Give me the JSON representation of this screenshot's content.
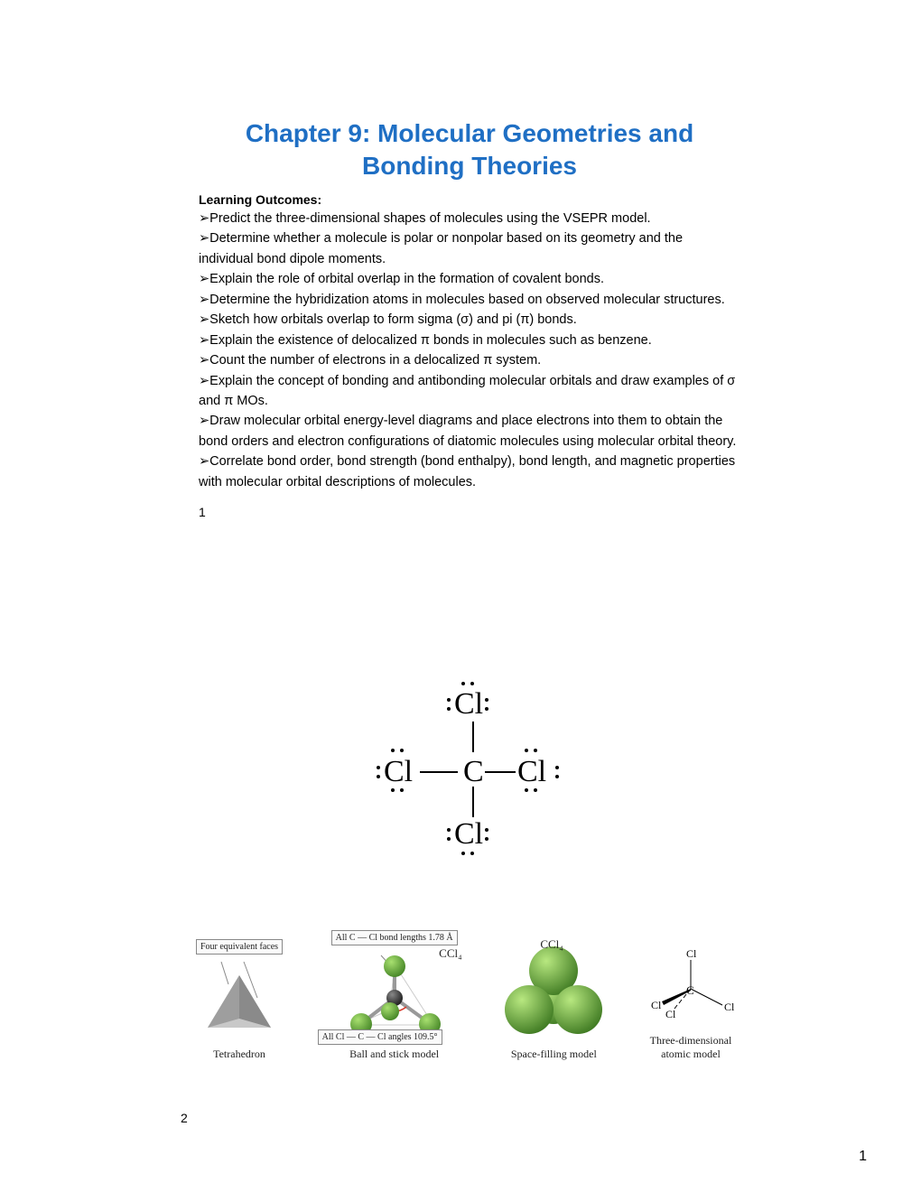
{
  "title": "Chapter 9: Molecular Geometries and Bonding Theories",
  "subhead": "Learning Outcomes:",
  "bullet_glyph": "➢",
  "outcomes": [
    "Predict the three-dimensional shapes of molecules using the VSEPR model.",
    "Determine whether a molecule is polar or nonpolar based on its geometry and the individual bond dipole moments.",
    "Explain the role of orbital overlap in the formation of covalent bonds.",
    "Determine the hybridization atoms in molecules based on observed molecular structures.",
    "Sketch how orbitals overlap to form sigma (σ) and pi (π) bonds.",
    "Explain the existence of delocalized π bonds in molecules such as benzene.",
    "Count the number of electrons in a delocalized π system.",
    "Explain the concept of bonding and antibonding molecular orbitals and draw examples of σ and π MOs.",
    "Draw molecular orbital energy-level diagrams and place electrons into them to obtain the bond orders and electron configurations of diatomic molecules using molecular orbital theory.",
    "Correlate bond order, bond strength (bond enthalpy), bond length, and magnetic properties with molecular orbital descriptions of molecules."
  ],
  "slide1_num": "1",
  "slide2_num": "2",
  "page_num": "1",
  "lewis": {
    "center": "C",
    "ligand": "Cl"
  },
  "callouts": {
    "faces": "Four equivalent faces",
    "bondlen": "All C — Cl bond lengths 1.78 Å",
    "angle": "All Cl — C — Cl angles 109.5°"
  },
  "formulas": {
    "ccl4": "CCl₄"
  },
  "models": {
    "tetra": "Tetrahedron",
    "ballstick": "Ball and stick model",
    "spacefill": "Space-filling model",
    "atomic3d_l1": "Three-dimensional",
    "atomic3d_l2": "atomic model"
  },
  "atomic3d": {
    "C": "C",
    "Cl": "Cl"
  },
  "colors": {
    "title": "#1f6fc4",
    "chlorine": "#6eb33f",
    "chlorine_dark": "#4a8a2a",
    "carbon": "#3a3a3a",
    "tetra_face": "#b8b8b8",
    "tetra_face_dark": "#8a8a8a",
    "callout_border": "#888888",
    "red_arc": "#d43a2a"
  }
}
